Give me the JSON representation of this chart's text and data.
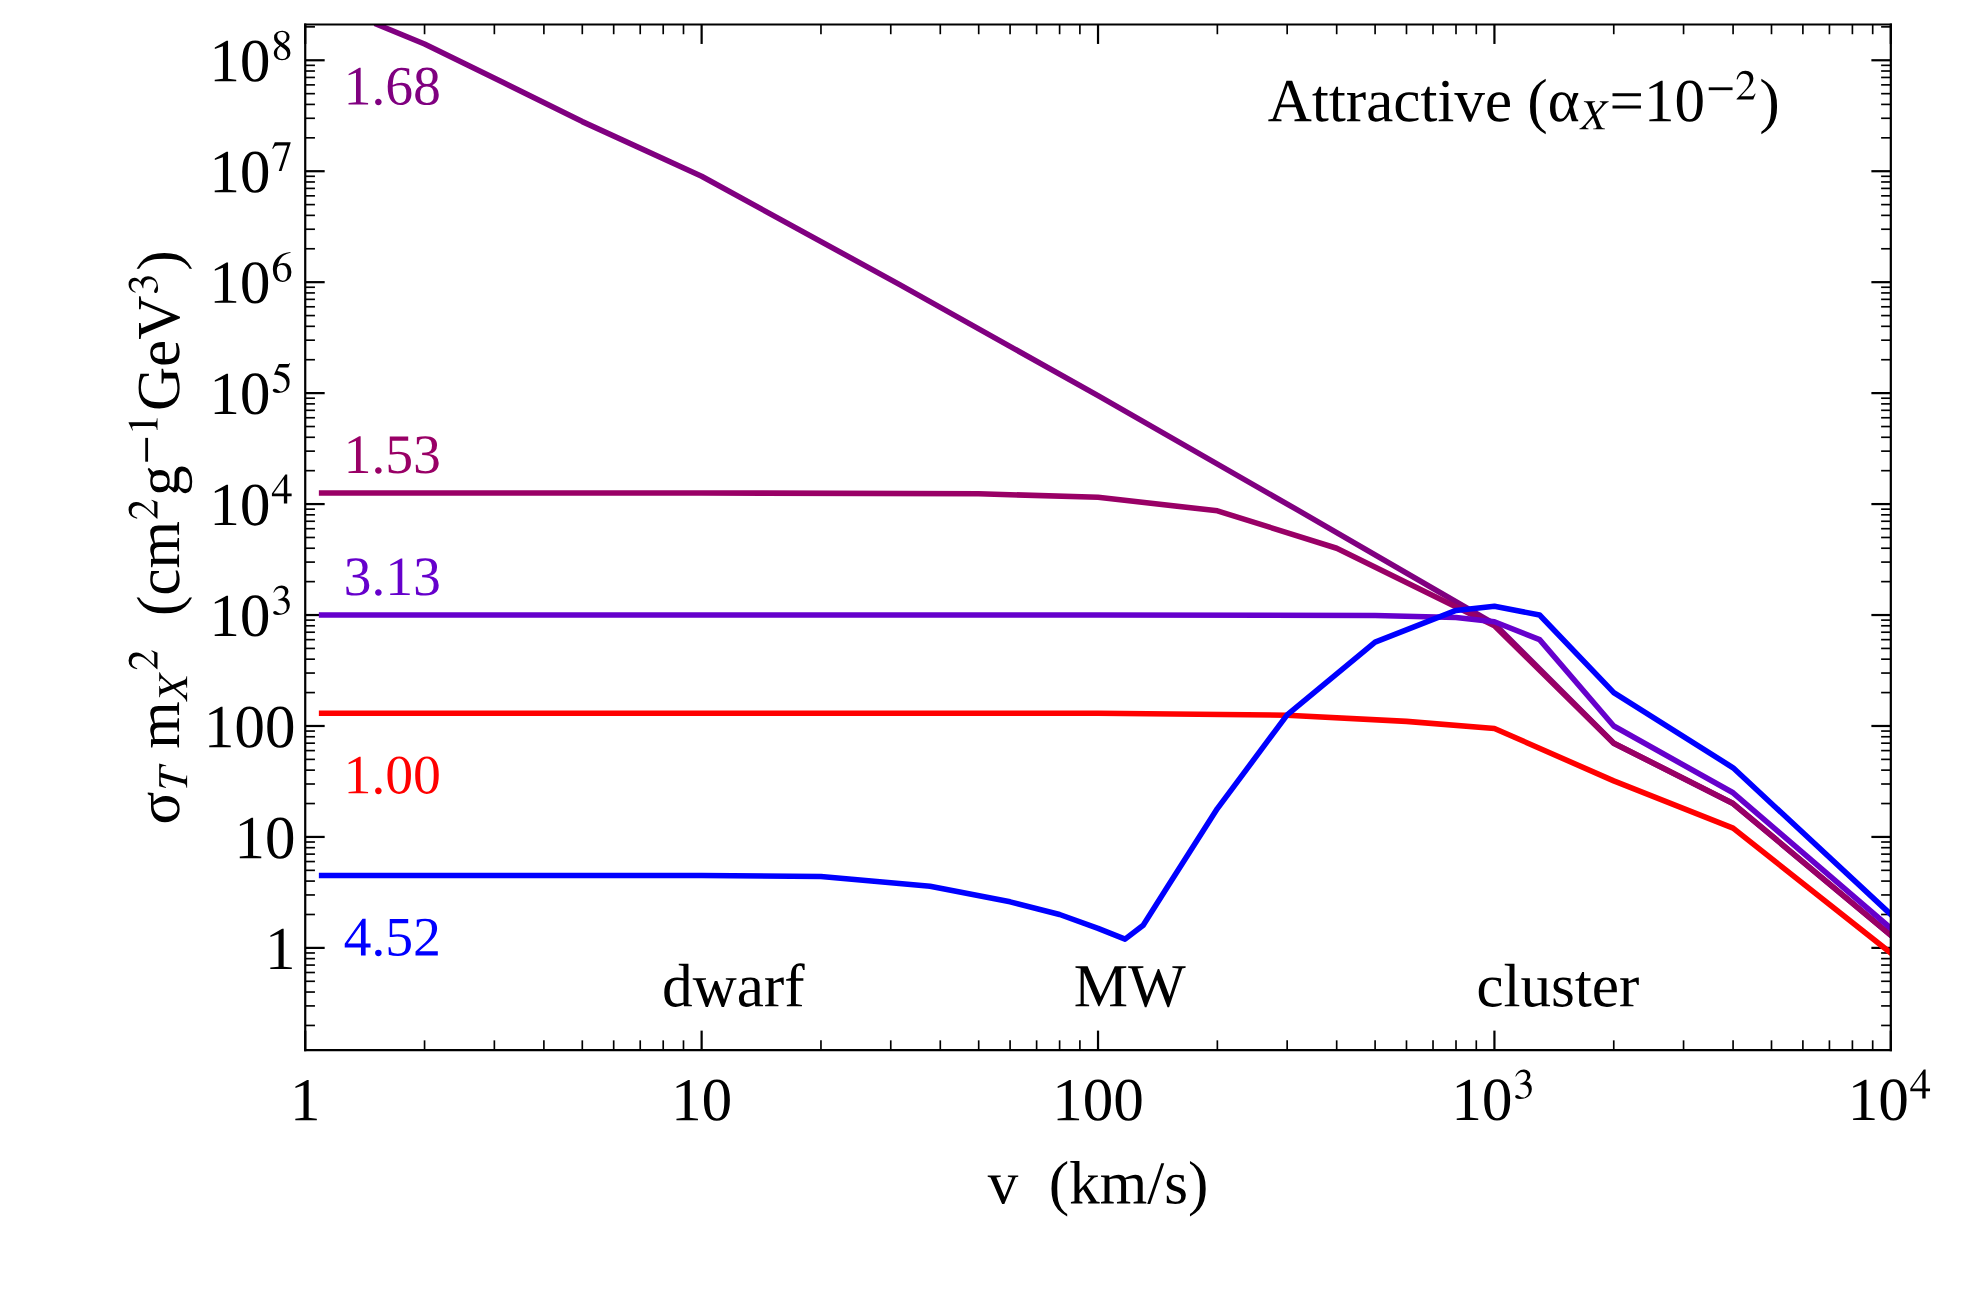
{
  "chart_data": {
    "type": "line",
    "title": "Attractive (α$_{X}$=10$^{−2}$)",
    "xlabel": "v  (km/s)",
    "ylabel": "σ$_{T}$ m$_{X}$$^{2}$  (cm$^{2}$g$^{−1}$GeV$^{3}$)",
    "log": "xy",
    "grid": false,
    "legend": false,
    "marker": "none",
    "line_style": "solid",
    "xlim": [
      1,
      10000
    ],
    "ylim": [
      0.12,
      210000000
    ],
    "xticks": [
      1,
      10,
      100,
      {
        "value": 1000,
        "label": "10$^{3}$"
      },
      {
        "value": 10000,
        "label": "10$^{4}$"
      }
    ],
    "yticks": [
      1,
      10,
      100,
      {
        "value": 1000,
        "label": "10$^{3}$"
      },
      {
        "value": 10000,
        "label": "10$^{4}$"
      },
      {
        "value": 100000,
        "label": "10$^{5}$"
      },
      {
        "value": 1000000,
        "label": "10$^{6}$"
      },
      {
        "value": 10000000,
        "label": "10$^{7}$"
      },
      {
        "value": 100000000,
        "label": "10$^{8}$"
      }
    ],
    "annotations": [
      "dwarf",
      "MW",
      "cluster"
    ],
    "series": [
      {
        "name": "1.68",
        "color": "#800080",
        "x": [
          1.52,
          2,
          3.16,
          5,
          10,
          31.6,
          100,
          316,
          1000,
          2000,
          4000,
          10000
        ],
        "values": [
          210000000,
          140000000,
          63000000,
          28000000,
          9000000,
          950000,
          95000,
          9000,
          830,
          70,
          20,
          1.3
        ]
      },
      {
        "name": "1.53",
        "color": "#990066",
        "x": [
          1.1,
          10,
          50,
          100,
          200,
          400,
          1000,
          2000,
          4000,
          10000
        ],
        "values": [
          12600,
          12600,
          12400,
          11500,
          8700,
          4000,
          800,
          70,
          20,
          1.3
        ]
      },
      {
        "name": "3.13",
        "color": "#6600cc",
        "x": [
          1.1,
          10,
          100,
          500,
          800,
          1000,
          1300,
          2000,
          4000,
          10000
        ],
        "values": [
          1000,
          1000,
          1000,
          990,
          950,
          870,
          600,
          100,
          25,
          1.5
        ]
      },
      {
        "name": "1.00",
        "color": "#ff0000",
        "x": [
          1.1,
          10,
          100,
          300,
          600,
          1000,
          2000,
          4000,
          10000
        ],
        "values": [
          130,
          130,
          130,
          125,
          110,
          95,
          32,
          12,
          0.9
        ]
      },
      {
        "name": "4.52",
        "color": "#0000ff",
        "x": [
          1.1,
          10,
          20,
          37.7,
          60,
          80,
          100,
          117,
          130,
          150,
          200,
          300,
          500,
          800,
          1000,
          1300,
          2000,
          4000,
          10000
        ],
        "values": [
          4.5,
          4.5,
          4.4,
          3.6,
          2.6,
          2.0,
          1.5,
          1.2,
          1.6,
          3.6,
          18,
          126,
          570,
          1100,
          1200,
          1000,
          200,
          42,
          2.0
        ]
      }
    ]
  }
}
